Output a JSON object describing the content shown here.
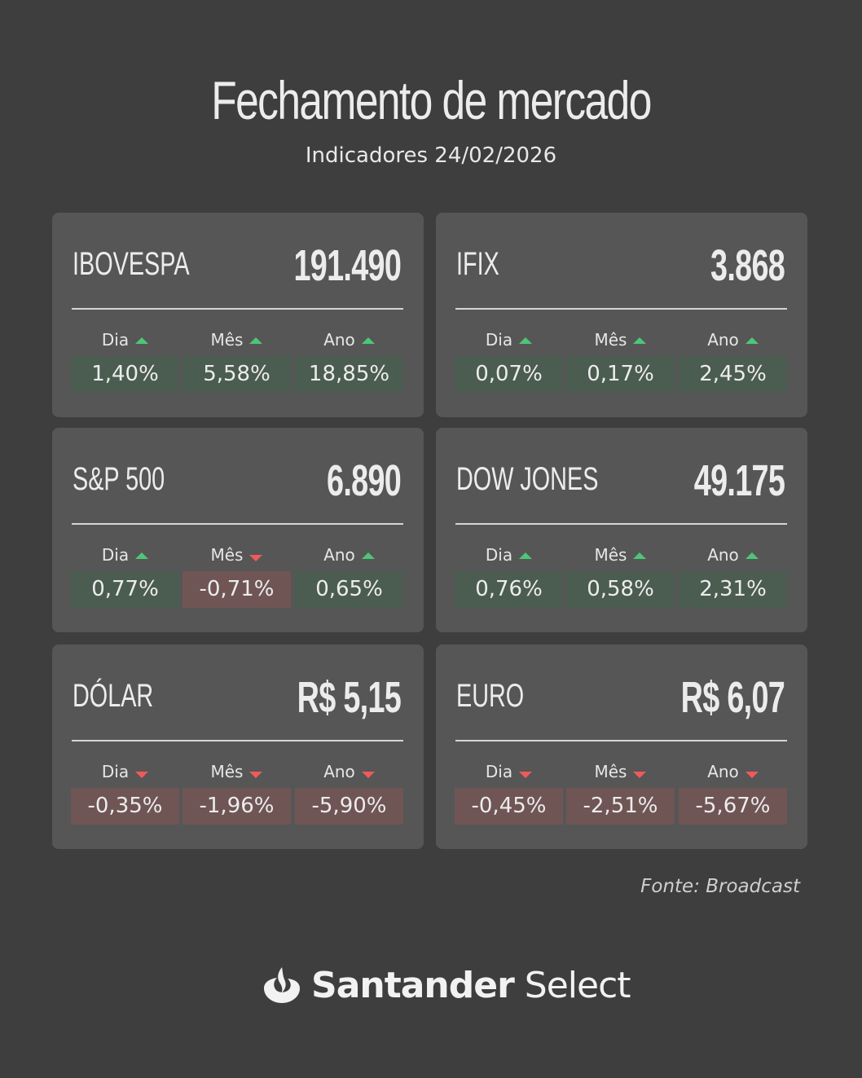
{
  "header": {
    "title": "Fechamento de mercado",
    "subtitle": "Indicadores 24/02/2026"
  },
  "colors": {
    "background": "#3e3e3e",
    "card": "#565656",
    "positive_fill": "#4b5c51",
    "negative_fill": "#705555",
    "arrow_up": "#4ec57a",
    "arrow_down": "#ef5a5a"
  },
  "period_labels": [
    "Dia",
    "Mês",
    "Ano"
  ],
  "cards": [
    {
      "name": "IBOVESPA",
      "value": "191.490",
      "changes": [
        {
          "value": "1,40%",
          "direction": "up"
        },
        {
          "value": "5,58%",
          "direction": "up"
        },
        {
          "value": "18,85%",
          "direction": "up"
        }
      ]
    },
    {
      "name": "IFIX",
      "value": "3.868",
      "changes": [
        {
          "value": "0,07%",
          "direction": "up"
        },
        {
          "value": "0,17%",
          "direction": "up"
        },
        {
          "value": "2,45%",
          "direction": "up"
        }
      ]
    },
    {
      "name": "S&P 500",
      "value": "6.890",
      "changes": [
        {
          "value": "0,77%",
          "direction": "up"
        },
        {
          "value": "-0,71%",
          "direction": "down"
        },
        {
          "value": "0,65%",
          "direction": "up"
        }
      ]
    },
    {
      "name": "DOW JONES",
      "value": "49.175",
      "changes": [
        {
          "value": "0,76%",
          "direction": "up"
        },
        {
          "value": "0,58%",
          "direction": "up"
        },
        {
          "value": "2,31%",
          "direction": "up"
        }
      ]
    },
    {
      "name": "DÓLAR",
      "value": "R$ 5,15",
      "changes": [
        {
          "value": "-0,35%",
          "direction": "down"
        },
        {
          "value": "-1,96%",
          "direction": "down"
        },
        {
          "value": "-5,90%",
          "direction": "down"
        }
      ]
    },
    {
      "name": "EURO",
      "value": "R$ 6,07",
      "changes": [
        {
          "value": "-0,45%",
          "direction": "down"
        },
        {
          "value": "-2,51%",
          "direction": "down"
        },
        {
          "value": "-5,67%",
          "direction": "down"
        }
      ]
    }
  ],
  "source": "Fonte: Broadcast",
  "logo": {
    "icon": "santander-flame-icon",
    "brand_bold": "Santander",
    "brand_light": " Select"
  }
}
